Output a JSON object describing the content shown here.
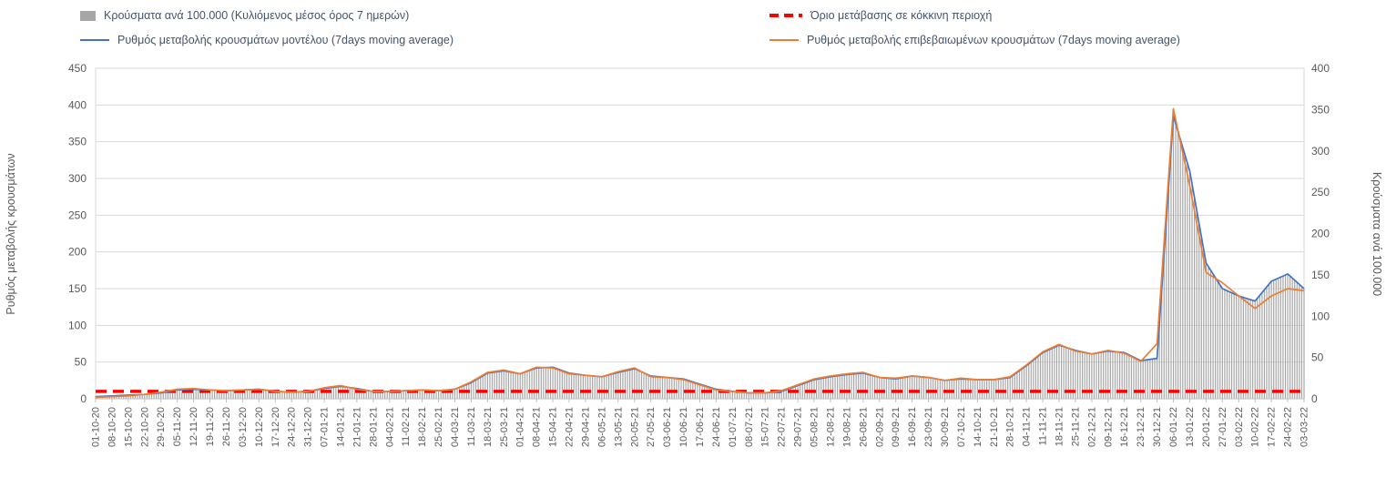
{
  "chart_data": {
    "type": "combo-bar-line",
    "title": "",
    "legend_position": "top",
    "grid": true,
    "x": [
      "01-10-20",
      "08-10-20",
      "15-10-20",
      "22-10-20",
      "29-10-20",
      "05-11-20",
      "12-11-20",
      "19-11-20",
      "26-11-20",
      "03-12-20",
      "10-12-20",
      "17-12-20",
      "24-12-20",
      "31-12-20",
      "07-01-21",
      "14-01-21",
      "21-01-21",
      "28-01-21",
      "04-02-21",
      "11-02-21",
      "18-02-21",
      "25-02-21",
      "04-03-21",
      "11-03-21",
      "18-03-21",
      "25-03-21",
      "01-04-21",
      "08-04-21",
      "15-04-21",
      "22-04-21",
      "29-04-21",
      "06-05-21",
      "13-05-21",
      "20-05-21",
      "27-05-21",
      "03-06-21",
      "10-06-21",
      "17-06-21",
      "24-06-21",
      "01-07-21",
      "08-07-21",
      "15-07-21",
      "22-07-21",
      "29-07-21",
      "05-08-21",
      "12-08-21",
      "19-08-21",
      "26-08-21",
      "02-09-21",
      "09-09-21",
      "16-09-21",
      "23-09-21",
      "30-09-21",
      "07-10-21",
      "14-10-21",
      "21-10-21",
      "28-10-21",
      "04-11-21",
      "11-11-21",
      "18-11-21",
      "25-11-21",
      "02-12-21",
      "09-12-21",
      "16-12-21",
      "23-12-21",
      "30-12-21",
      "06-01-22",
      "13-01-22",
      "20-01-22",
      "27-01-22",
      "03-02-22",
      "10-02-22",
      "17-02-22",
      "24-02-22",
      "03-03-22"
    ],
    "series": [
      {
        "name": "Κρούσματα ανά 100.000 (Κυλιόμενος μέσος όρος 7 ημερών)",
        "type": "bar",
        "axis": "right",
        "color": "#a6a6a6",
        "values": [
          3,
          4,
          4,
          5,
          7,
          11,
          12,
          11,
          10,
          11,
          12,
          9,
          8,
          9,
          12,
          15,
          12,
          9,
          9,
          10,
          11,
          10,
          12,
          20,
          31,
          34,
          30,
          37,
          38,
          31,
          28,
          27,
          32,
          36,
          28,
          26,
          24,
          18,
          12,
          9,
          7,
          7,
          9,
          16,
          23,
          27,
          29,
          31,
          26,
          24,
          28,
          26,
          22,
          24,
          23,
          23,
          26,
          40,
          56,
          65,
          59,
          54,
          58,
          56,
          46,
          49,
          343,
          276,
          165,
          134,
          125,
          118,
          142,
          151,
          134
        ]
      },
      {
        "name": "Ρυθμός μεταβολής κρουσμάτων μοντέλου (7days moving average)",
        "type": "line",
        "axis": "left",
        "color": "#4472c4",
        "values": [
          3,
          4,
          5,
          6,
          8,
          12,
          13,
          12,
          11,
          12,
          13,
          10,
          9,
          10,
          14,
          17,
          14,
          10,
          10,
          11,
          12,
          11,
          13,
          22,
          35,
          38,
          34,
          42,
          43,
          35,
          32,
          30,
          36,
          41,
          31,
          29,
          27,
          20,
          13,
          10,
          8,
          8,
          10,
          18,
          26,
          30,
          33,
          35,
          29,
          27,
          31,
          29,
          25,
          27,
          26,
          26,
          29,
          45,
          63,
          73,
          66,
          61,
          65,
          63,
          52,
          55,
          385,
          310,
          185,
          150,
          140,
          133,
          160,
          170,
          150
        ]
      },
      {
        "name": "Ρυθμός μεταβολής επιβεβαιωμένων κρουσμάτων (7days moving average)",
        "type": "line",
        "axis": "left",
        "color": "#ed7d31",
        "values": [
          2,
          3,
          4,
          6,
          9,
          13,
          14,
          12,
          11,
          12,
          13,
          10,
          9,
          10,
          15,
          18,
          13,
          10,
          10,
          11,
          12,
          11,
          13,
          23,
          36,
          39,
          34,
          43,
          42,
          34,
          32,
          30,
          37,
          42,
          30,
          29,
          26,
          19,
          12,
          10,
          8,
          8,
          11,
          19,
          27,
          31,
          34,
          36,
          29,
          28,
          31,
          29,
          25,
          28,
          26,
          26,
          30,
          46,
          64,
          74,
          65,
          61,
          66,
          62,
          51,
          75,
          395,
          290,
          172,
          158,
          140,
          123,
          140,
          150,
          147
        ]
      },
      {
        "name": "Όριο μετάβασης σε κόκκινη περιοχή",
        "type": "threshold-line",
        "axis": "left",
        "color": "#ff0000",
        "value": 10
      }
    ],
    "left_axis": {
      "label": "Ρυθμός μεταβολής κρουσμάτων",
      "min": 0,
      "max": 450,
      "step": 50
    },
    "right_axis": {
      "label": "Κρούσματα ανά 100.000",
      "min": 0,
      "max": 400,
      "step": 50
    }
  }
}
